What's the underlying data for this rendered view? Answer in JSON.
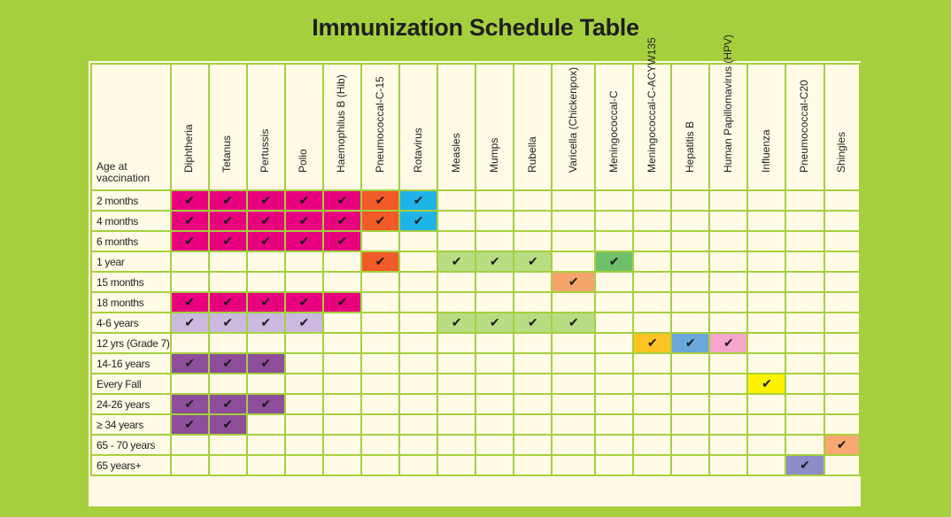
{
  "title": "Immunization Schedule Table",
  "age_header": "Age at vaccination",
  "check_glyph": "✔",
  "vaccines": [
    {
      "label": "Diphtheria",
      "width": 43
    },
    {
      "label": "Tetanus",
      "width": 43
    },
    {
      "label": "Pertussis",
      "width": 43
    },
    {
      "label": "Polio",
      "width": 43
    },
    {
      "label": "Haemophilus B (Hib)",
      "width": 43
    },
    {
      "label": "Pneumococcal-C-15",
      "width": 43
    },
    {
      "label": "Rotavirus",
      "width": 43
    },
    {
      "label": "Measles",
      "width": 43
    },
    {
      "label": "Mumps",
      "width": 43
    },
    {
      "label": "Rubella",
      "width": 43
    },
    {
      "label": "Varicella (Chickenpox)",
      "width": 49
    },
    {
      "label": "Meningococcal-C",
      "width": 43
    },
    {
      "label": "Meningococcal-C-ACYW135",
      "width": 43
    },
    {
      "label": "Hepatitis B",
      "width": 43
    },
    {
      "label": "Human Papillomavirus (HPV)",
      "width": 43
    },
    {
      "label": "Influenza",
      "width": 43
    },
    {
      "label": "Pneumococcal-C20",
      "width": 43
    },
    {
      "label": "Shingles",
      "width": 40
    }
  ],
  "colors": {
    "P": "#e8007f",
    "O": "#f15a29",
    "B": "#1fb3e8",
    "G": "#b8dc82",
    "D": "#6fc06a",
    "S": "#f6a36c",
    "L": "#cbb9e0",
    "Y": "#ffc423",
    "M": "#6ba7dd",
    "K": "#f5a6c9",
    "F": "#fff200",
    "V": "#8e4e9c",
    "A": "#f8a870",
    "I": "#8c8cc8"
  },
  "rows": [
    {
      "age": "2 months",
      "cells": "PPPPPOB..........."
    },
    {
      "age": "4 months",
      "cells": "PPPPPOB..........."
    },
    {
      "age": "6 months",
      "cells": "PPPPP............."
    },
    {
      "age": "1 year",
      "cells": ".....O.GGG.D......"
    },
    {
      "age": "15 months",
      "cells": "..........S......."
    },
    {
      "age": "18 months",
      "cells": "PPPPP............."
    },
    {
      "age": "4-6 years",
      "cells": "LLLL...GGGG......."
    },
    {
      "age": "12 yrs (Grade 7)",
      "cells": "............YMK..."
    },
    {
      "age": "14-16 years",
      "cells": "VVV..............."
    },
    {
      "age": "Every Fall",
      "cells": "...............F.."
    },
    {
      "age": "24-26 years",
      "cells": "VVV..............."
    },
    {
      "age": "≥ 34 years",
      "cells": "VV................"
    },
    {
      "age": "65 - 70 years",
      "cells": ".................A"
    },
    {
      "age": "65 years+",
      "cells": "................I."
    }
  ]
}
